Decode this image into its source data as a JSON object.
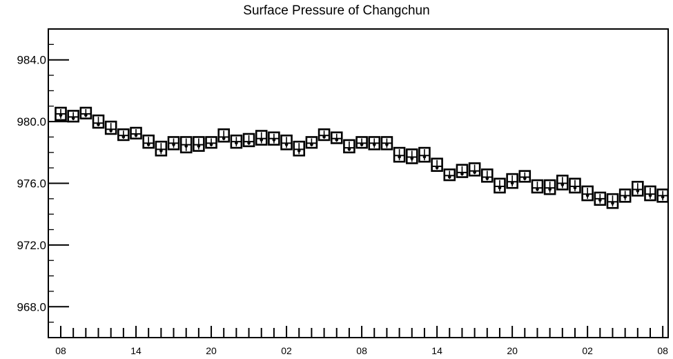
{
  "chart_data": {
    "type": "box",
    "title": "Surface Pressure of Changchun",
    "xlabel": "",
    "ylabel": "",
    "ylim": [
      966,
      986
    ],
    "y_ticks": [
      "968.0",
      "972.0",
      "976.0",
      "980.0",
      "984.0"
    ],
    "y_tick_values": [
      968,
      972,
      976,
      980,
      984
    ],
    "x_tick_labels": [
      "08",
      "14",
      "20",
      "02",
      "08",
      "14",
      "20",
      "02",
      "08"
    ],
    "x_tick_index": [
      0,
      6,
      12,
      18,
      24,
      30,
      36,
      42,
      48
    ],
    "x_step_hours": 1,
    "grid": false,
    "series": [
      {
        "values": [
          980.5,
          980.3,
          980.5,
          979.9,
          979.5,
          979.1,
          979.2,
          978.6,
          978.2,
          978.6,
          978.5,
          978.5,
          978.6,
          979.0,
          978.7,
          978.7,
          978.9,
          978.9,
          978.6,
          978.2,
          978.6,
          979.1,
          978.9,
          978.3,
          978.6,
          978.6,
          978.6,
          977.8,
          977.7,
          977.8,
          977.1,
          976.5,
          976.7,
          976.8,
          976.4,
          975.8,
          976.1,
          976.4,
          975.7,
          975.7,
          976.0,
          975.8,
          975.3,
          975.0,
          974.8,
          975.2,
          975.6,
          975.3,
          975.2
        ],
        "lows": [
          980.1,
          980.0,
          980.2,
          979.6,
          979.2,
          978.8,
          978.9,
          978.3,
          977.8,
          978.2,
          978.0,
          978.1,
          978.3,
          978.7,
          978.3,
          978.4,
          978.5,
          978.5,
          978.2,
          977.8,
          978.3,
          978.8,
          978.6,
          978.0,
          978.3,
          978.2,
          978.2,
          977.4,
          977.3,
          977.4,
          976.8,
          976.2,
          976.4,
          976.5,
          976.1,
          975.4,
          975.7,
          976.1,
          975.4,
          975.3,
          975.6,
          975.4,
          974.9,
          974.6,
          974.4,
          974.8,
          975.2,
          974.9,
          974.8
        ],
        "highs": [
          980.9,
          980.7,
          980.9,
          980.4,
          980.0,
          979.5,
          979.6,
          979.1,
          978.7,
          979.0,
          979.0,
          979.0,
          979.0,
          979.5,
          979.1,
          979.2,
          979.4,
          979.3,
          979.1,
          978.7,
          979.0,
          979.5,
          979.3,
          978.8,
          979.0,
          979.0,
          979.0,
          978.3,
          978.2,
          978.3,
          977.6,
          976.9,
          977.2,
          977.3,
          976.9,
          976.3,
          976.6,
          976.8,
          976.2,
          976.2,
          976.5,
          976.3,
          975.8,
          975.4,
          975.3,
          975.6,
          976.1,
          975.8,
          975.6
        ]
      }
    ]
  }
}
